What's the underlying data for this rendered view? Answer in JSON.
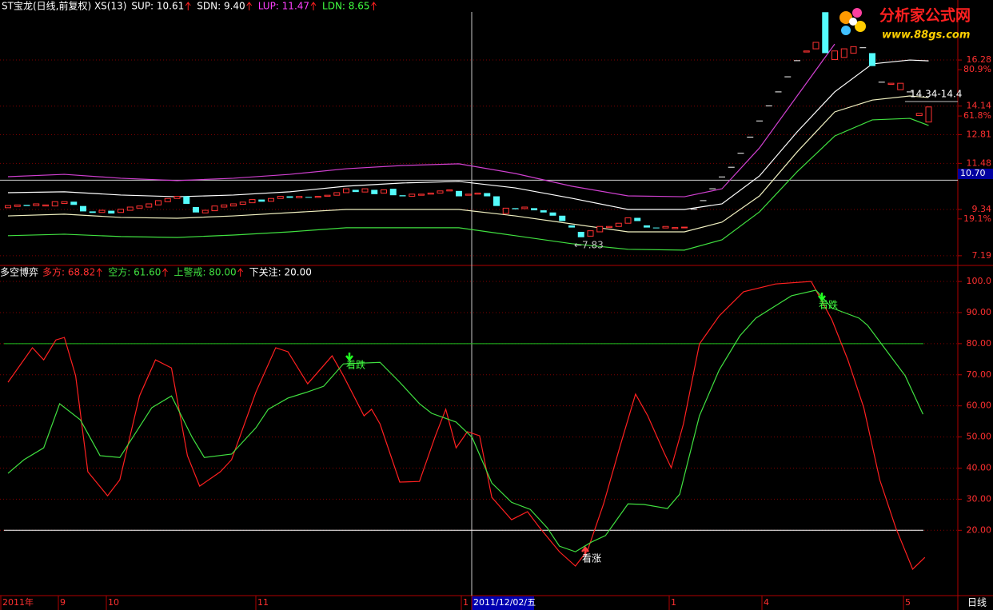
{
  "header": {
    "title": "ST宝龙(日线,前复权) XS(13)",
    "items": [
      {
        "text": "SUP: 10.61",
        "color": "#ffffff"
      },
      {
        "text": "SDN: 9.40",
        "color": "#ffffff"
      },
      {
        "text": "LUP: 11.47",
        "color": "#ff40ff"
      },
      {
        "text": "LDN: 8.65",
        "color": "#40ff40"
      }
    ]
  },
  "logo": {
    "name": "分析家公式网",
    "url": "www.88gs.com"
  },
  "x_axis": {
    "labels": [
      "2011年",
      "9",
      "10",
      "11",
      "1",
      "2011/12/02/五",
      "1",
      "4",
      "5"
    ],
    "period": "日线"
  },
  "chart_data": [
    {
      "type": "candlestick",
      "up_color": "#ff3232",
      "down_color": "#54fcfc",
      "ylim": [
        6.74,
        18.51
      ],
      "yticks": [
        16.28,
        14.14,
        12.81,
        11.48,
        9.34,
        7.19
      ],
      "fib_ticks": [
        {
          "value": 15.83,
          "label": "80.9%"
        },
        {
          "value": 13.68,
          "label": "61.8%"
        },
        {
          "value": 8.9,
          "label": "19.1%"
        }
      ],
      "last_price": {
        "value": 10.7,
        "label": "10.70"
      },
      "candles": [
        [
          9.42,
          9.52
        ],
        [
          9.48,
          9.55
        ],
        [
          9.55,
          9.5
        ],
        [
          9.52,
          9.6
        ],
        [
          9.5,
          9.55
        ],
        [
          9.5,
          9.7
        ],
        [
          9.62,
          9.7
        ],
        [
          9.7,
          9.55
        ],
        [
          9.5,
          9.25
        ],
        [
          9.25,
          9.18
        ],
        [
          9.2,
          9.3
        ],
        [
          9.28,
          9.15
        ],
        [
          9.2,
          9.35
        ],
        [
          9.3,
          9.45
        ],
        [
          9.4,
          9.5
        ],
        [
          9.45,
          9.6
        ],
        [
          9.55,
          9.75
        ],
        [
          9.7,
          9.85
        ],
        [
          9.85,
          9.95
        ],
        [
          9.95,
          9.6
        ],
        [
          9.45,
          9.2
        ],
        [
          9.18,
          9.3
        ],
        [
          9.28,
          9.5
        ],
        [
          9.45,
          9.55
        ],
        [
          9.5,
          9.6
        ],
        [
          9.58,
          9.68
        ],
        [
          9.65,
          9.8
        ],
        [
          9.8,
          9.7
        ],
        [
          9.72,
          9.85
        ],
        [
          9.85,
          9.95
        ],
        [
          9.95,
          9.88
        ],
        [
          9.88,
          9.95
        ],
        [
          9.92,
          9.9
        ],
        [
          9.9,
          9.95
        ],
        [
          9.95,
          10.0
        ],
        [
          10.0,
          10.12
        ],
        [
          10.12,
          10.3
        ],
        [
          10.25,
          10.15
        ],
        [
          10.15,
          10.3
        ],
        [
          10.25,
          10.05
        ],
        [
          10.1,
          10.25
        ],
        [
          10.3,
          10.0
        ],
        [
          10.0,
          9.95
        ],
        [
          9.95,
          10.05
        ],
        [
          10.0,
          10.05
        ],
        [
          10.05,
          10.1
        ],
        [
          10.1,
          10.2
        ],
        [
          10.2,
          10.25
        ],
        [
          10.2,
          9.95
        ],
        [
          10.0,
          10.05
        ],
        [
          10.05,
          10.1
        ],
        [
          10.1,
          9.95
        ],
        [
          9.95,
          9.5
        ],
        [
          9.15,
          9.4
        ],
        [
          9.4,
          9.35
        ],
        [
          9.38,
          9.45
        ],
        [
          9.4,
          9.3
        ],
        [
          9.3,
          9.2
        ],
        [
          9.2,
          9.05
        ],
        [
          9.05,
          8.8
        ],
        [
          8.6,
          8.5
        ],
        [
          8.3,
          8.05
        ],
        [
          8.1,
          8.35
        ],
        [
          8.3,
          8.55
        ],
        [
          8.5,
          8.55
        ],
        [
          8.55,
          8.7
        ],
        [
          8.7,
          8.95
        ],
        [
          8.95,
          8.8
        ],
        [
          8.6,
          8.5
        ],
        [
          8.5,
          8.48
        ],
        [
          8.48,
          8.55
        ],
        [
          8.45,
          8.5
        ],
        [
          8.5,
          8.52
        ],
        [
          9.35,
          9.35
        ],
        [
          9.75,
          9.75
        ],
        [
          10.3,
          10.3
        ],
        [
          10.85,
          10.85
        ],
        [
          11.3,
          11.3
        ],
        [
          11.95,
          11.95
        ],
        [
          12.7,
          12.7
        ],
        [
          13.45,
          13.45
        ],
        [
          14.15,
          14.15
        ],
        [
          14.8,
          14.8
        ],
        [
          15.5,
          15.5
        ],
        [
          16.25,
          16.25
        ],
        [
          16.65,
          16.7
        ],
        [
          16.8,
          17.1
        ],
        [
          18.5,
          16.6
        ],
        [
          16.3,
          16.7
        ],
        [
          16.4,
          16.8
        ],
        [
          16.6,
          16.9
        ],
        [
          16.85,
          16.85
        ],
        [
          16.6,
          16.0
        ],
        [
          15.25,
          15.25
        ],
        [
          15.15,
          15.2
        ],
        [
          14.9,
          15.2
        ],
        [
          14.8,
          14.8
        ],
        [
          13.7,
          13.8
        ],
        [
          13.4,
          14.1
        ]
      ],
      "band_x": [
        0,
        6,
        12,
        18,
        24,
        30,
        36,
        42,
        48,
        54,
        60,
        66,
        72,
        76,
        80,
        84,
        88,
        92,
        96,
        98
      ],
      "series": [
        {
          "color": "#d040d0",
          "values": [
            10.86,
            10.97,
            10.79,
            10.68,
            10.79,
            10.97,
            11.23,
            11.38,
            11.46,
            11.01,
            10.42,
            9.97,
            9.93,
            10.3,
            12.2,
            14.61,
            17.02,
            null,
            null,
            null
          ]
        },
        {
          "color": "#ffffff",
          "values": [
            10.12,
            10.16,
            10.01,
            9.93,
            10.01,
            10.16,
            10.42,
            10.57,
            10.64,
            10.34,
            9.86,
            9.34,
            9.34,
            9.6,
            10.9,
            12.94,
            14.8,
            16.1,
            16.28,
            16.24
          ]
        },
        {
          "color": "#f0f0c0",
          "values": [
            9.04,
            9.12,
            8.97,
            8.93,
            9.04,
            9.19,
            9.34,
            9.34,
            9.34,
            9.04,
            8.67,
            8.3,
            8.3,
            8.75,
            9.97,
            12.01,
            13.87,
            14.42,
            14.61,
            14.54
          ]
        },
        {
          "color": "#40e040",
          "values": [
            8.12,
            8.19,
            8.08,
            8.04,
            8.15,
            8.3,
            8.49,
            8.49,
            8.49,
            8.12,
            7.75,
            7.49,
            7.45,
            7.93,
            9.23,
            11.09,
            12.75,
            13.5,
            13.57,
            13.24
          ]
        }
      ],
      "annotations": [
        {
          "text": "←7.83"
        },
        {
          "text": "14.34-14.4"
        }
      ]
    },
    {
      "type": "line",
      "title": "多空博弈",
      "header": [
        {
          "text": "多方: 68.82",
          "color": "#ff3030"
        },
        {
          "text": "空方: 61.60",
          "color": "#40e040"
        },
        {
          "text": "上警戒: 80.00",
          "color": "#40e040"
        },
        {
          "text": "下关注: 20.00",
          "color": "#ffffff"
        }
      ],
      "ylim": [
        -1,
        103.1
      ],
      "yticks": [
        {
          "value": 100,
          "label": "100.0"
        },
        {
          "value": 90,
          "label": "90.00"
        },
        {
          "value": 80,
          "label": "80.00"
        },
        {
          "value": 70,
          "label": "70.00"
        },
        {
          "value": 60,
          "label": "60.00"
        },
        {
          "value": 50,
          "label": "50.00"
        },
        {
          "value": 40,
          "label": "40.00"
        },
        {
          "value": 30,
          "label": "30.00"
        },
        {
          "value": 20,
          "label": "20.00"
        }
      ],
      "hlines": [
        {
          "value": 80,
          "color": "#20c020"
        },
        {
          "value": 20,
          "color": "#ffffff"
        }
      ],
      "series": [
        {
          "color": "#ff2020",
          "x": [
            0,
            2.6,
            3.8,
            5.1,
            6.0,
            7.2,
            8.5,
            10.6,
            11.9,
            14.0,
            15.7,
            17.4,
            19.1,
            20.4,
            22.6,
            23.8,
            26.4,
            28.5,
            29.8,
            31.9,
            34.5,
            35.7,
            37.9,
            38.7,
            39.6,
            41.7,
            43.8,
            45.5,
            46.6,
            47.7,
            48.9,
            50.2,
            51.5,
            53.6,
            55.3,
            56.6,
            58.7,
            60.4,
            61.7,
            63.4,
            65.1,
            66.8,
            68.1,
            69.8,
            70.6,
            71.9,
            73.6,
            75.7,
            78.3,
            81.7,
            85.5,
            87.7,
            89.4,
            91.1,
            92.8,
            94.5,
            96.3,
            97.6
          ],
          "values": [
            67.6,
            78.7,
            74.8,
            81.2,
            82.0,
            69.7,
            38.8,
            31.1,
            36.2,
            63.2,
            74.8,
            72.2,
            44.0,
            34.2,
            38.8,
            42.7,
            64.5,
            78.7,
            77.4,
            67.1,
            76.1,
            69.7,
            56.8,
            58.9,
            54.2,
            35.5,
            35.7,
            50.4,
            58.9,
            46.5,
            51.7,
            50.4,
            30.6,
            23.4,
            26.0,
            20.8,
            13.1,
            8.5,
            13.6,
            28.5,
            46.5,
            63.8,
            56.8,
            45.2,
            40.1,
            54.2,
            79.9,
            88.9,
            96.7,
            99.2,
            100,
            87.7,
            74.8,
            59.4,
            36.2,
            20.8,
            7.5,
            11.3
          ]
        },
        {
          "color": "#40e040",
          "x": [
            0,
            1.7,
            3.8,
            5.5,
            7.7,
            9.8,
            11.9,
            15.3,
            17.4,
            19.6,
            20.9,
            23.8,
            26.4,
            27.7,
            29.8,
            31.9,
            33.6,
            35.7,
            39.6,
            41.7,
            43.8,
            45.1,
            47.7,
            49.4,
            51.5,
            53.6,
            55.6,
            57.4,
            58.7,
            60.4,
            62.1,
            63.6,
            66.0,
            67.7,
            70.2,
            71.5,
            73.6,
            75.7,
            77.9,
            79.6,
            83.4,
            86.0,
            87.7,
            90.6,
            91.5,
            93.6,
            95.5,
            97.4
          ],
          "values": [
            38.3,
            42.7,
            46.5,
            60.7,
            55.5,
            44.0,
            43.4,
            59.4,
            63.2,
            49.9,
            43.4,
            44.5,
            53.0,
            58.9,
            62.5,
            64.5,
            66.3,
            73.5,
            74.0,
            67.6,
            60.7,
            57.6,
            54.8,
            49.9,
            35.2,
            29.0,
            26.7,
            20.8,
            14.9,
            13.1,
            16.2,
            18.3,
            28.5,
            28.3,
            27.0,
            31.6,
            56.8,
            71.5,
            82.5,
            88.2,
            95.4,
            97.2,
            91.5,
            88.2,
            85.9,
            77.4,
            69.7,
            57.3
          ]
        }
      ],
      "annotations": [
        {
          "text": "看跌",
          "color": "#40ff40"
        },
        {
          "text": "看跌",
          "color": "#40ff40"
        },
        {
          "text": "看涨",
          "color": "#ffffff"
        }
      ]
    }
  ]
}
